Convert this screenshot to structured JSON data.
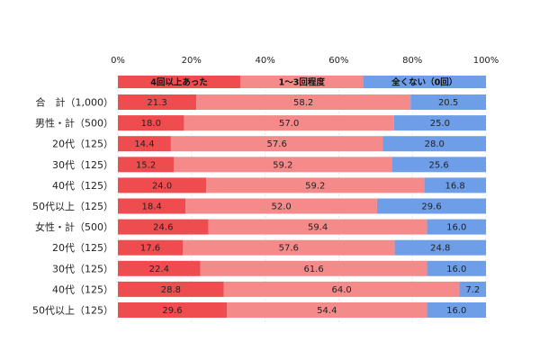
{
  "chart_data": {
    "type": "bar",
    "orientation": "horizontal",
    "stacked": true,
    "percent_stacked": true,
    "xlim": [
      0,
      100
    ],
    "x_ticks": [
      "0%",
      "20%",
      "40%",
      "60%",
      "80%",
      "100%"
    ],
    "legend_position": "top",
    "categories": [
      "合　計（1,000）",
      "男性・計（500）",
      "20代（125）",
      "30代（125）",
      "40代（125）",
      "50代以上（125）",
      "女性・計（500）",
      "20代（125）",
      "30代（125）",
      "40代（125）",
      "50代以上（125）"
    ],
    "series": [
      {
        "name": "4回以上あった",
        "color": "#ee4c4f",
        "values": [
          21.3,
          18.0,
          14.4,
          15.2,
          24.0,
          18.4,
          24.6,
          17.6,
          22.4,
          28.8,
          29.6
        ]
      },
      {
        "name": "1～3回程度",
        "color": "#f58a8b",
        "values": [
          58.2,
          57.0,
          57.6,
          59.2,
          59.2,
          52.0,
          59.4,
          57.6,
          61.6,
          64.0,
          54.4
        ]
      },
      {
        "name": "全くない（0回）",
        "color": "#6f9ee8",
        "values": [
          20.5,
          25.0,
          28.0,
          25.6,
          16.8,
          29.6,
          16.0,
          24.8,
          16.0,
          7.2,
          16.0
        ]
      }
    ]
  }
}
